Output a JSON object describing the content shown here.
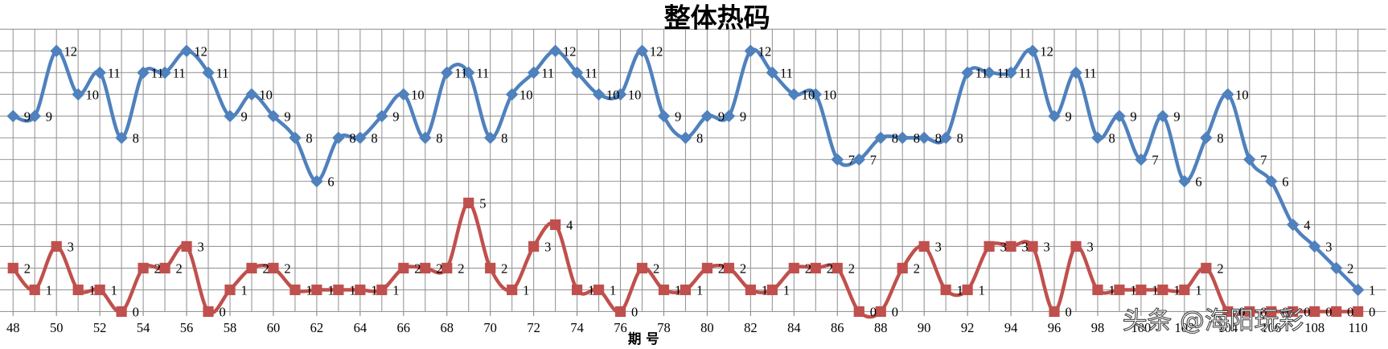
{
  "chart_data": {
    "type": "line",
    "title": "整体热码",
    "x_label": "期 号",
    "watermark": "头条 @海阳玩彩",
    "x": [
      48,
      49,
      50,
      51,
      52,
      53,
      54,
      55,
      56,
      57,
      58,
      59,
      60,
      61,
      62,
      63,
      64,
      65,
      66,
      67,
      68,
      69,
      70,
      71,
      72,
      73,
      74,
      75,
      76,
      77,
      78,
      79,
      80,
      81,
      82,
      83,
      84,
      85,
      86,
      87,
      88,
      89,
      90,
      91,
      92,
      93,
      94,
      95,
      96,
      97,
      98,
      99,
      100,
      101,
      102,
      103,
      104,
      105,
      106,
      107,
      108,
      109,
      110
    ],
    "series": [
      {
        "color": "#4f81bd",
        "marker": "diamond",
        "values": [
          9,
          9,
          12,
          10,
          11,
          8,
          11,
          11,
          12,
          11,
          9,
          10,
          9,
          8,
          6,
          8,
          8,
          9,
          10,
          8,
          11,
          11,
          8,
          10,
          11,
          12,
          11,
          10,
          10,
          12,
          9,
          8,
          9,
          9,
          12,
          11,
          10,
          10,
          7,
          7,
          8,
          8,
          8,
          8,
          11,
          11,
          11,
          12,
          9,
          11,
          8,
          9,
          7,
          9,
          6,
          8,
          10,
          7,
          6,
          4,
          3,
          2,
          1
        ]
      },
      {
        "color": "#c0504d",
        "marker": "square",
        "values": [
          2,
          1,
          3,
          1,
          1,
          0,
          2,
          2,
          3,
          0,
          1,
          2,
          2,
          1,
          1,
          1,
          1,
          1,
          2,
          2,
          2,
          5,
          2,
          1,
          3,
          4,
          1,
          1,
          0,
          2,
          1,
          1,
          2,
          2,
          1,
          1,
          2,
          2,
          2,
          0,
          0,
          2,
          3,
          1,
          1,
          3,
          3,
          3,
          0,
          3,
          1,
          1,
          1,
          1,
          1,
          2,
          0,
          0,
          0,
          0,
          0,
          0,
          0
        ]
      }
    ],
    "xlim": [
      47.4,
      111.3
    ],
    "xticks": [
      48,
      50,
      52,
      54,
      56,
      58,
      60,
      62,
      64,
      66,
      68,
      70,
      72,
      74,
      76,
      78,
      80,
      82,
      84,
      86,
      88,
      90,
      92,
      94,
      96,
      98,
      100,
      102,
      104,
      106,
      108,
      110
    ],
    "ylim": [
      0,
      13
    ],
    "yticks": [
      0,
      1,
      2,
      3,
      4,
      5,
      6,
      7,
      8,
      9,
      10,
      11,
      12,
      13
    ],
    "grid": true
  }
}
